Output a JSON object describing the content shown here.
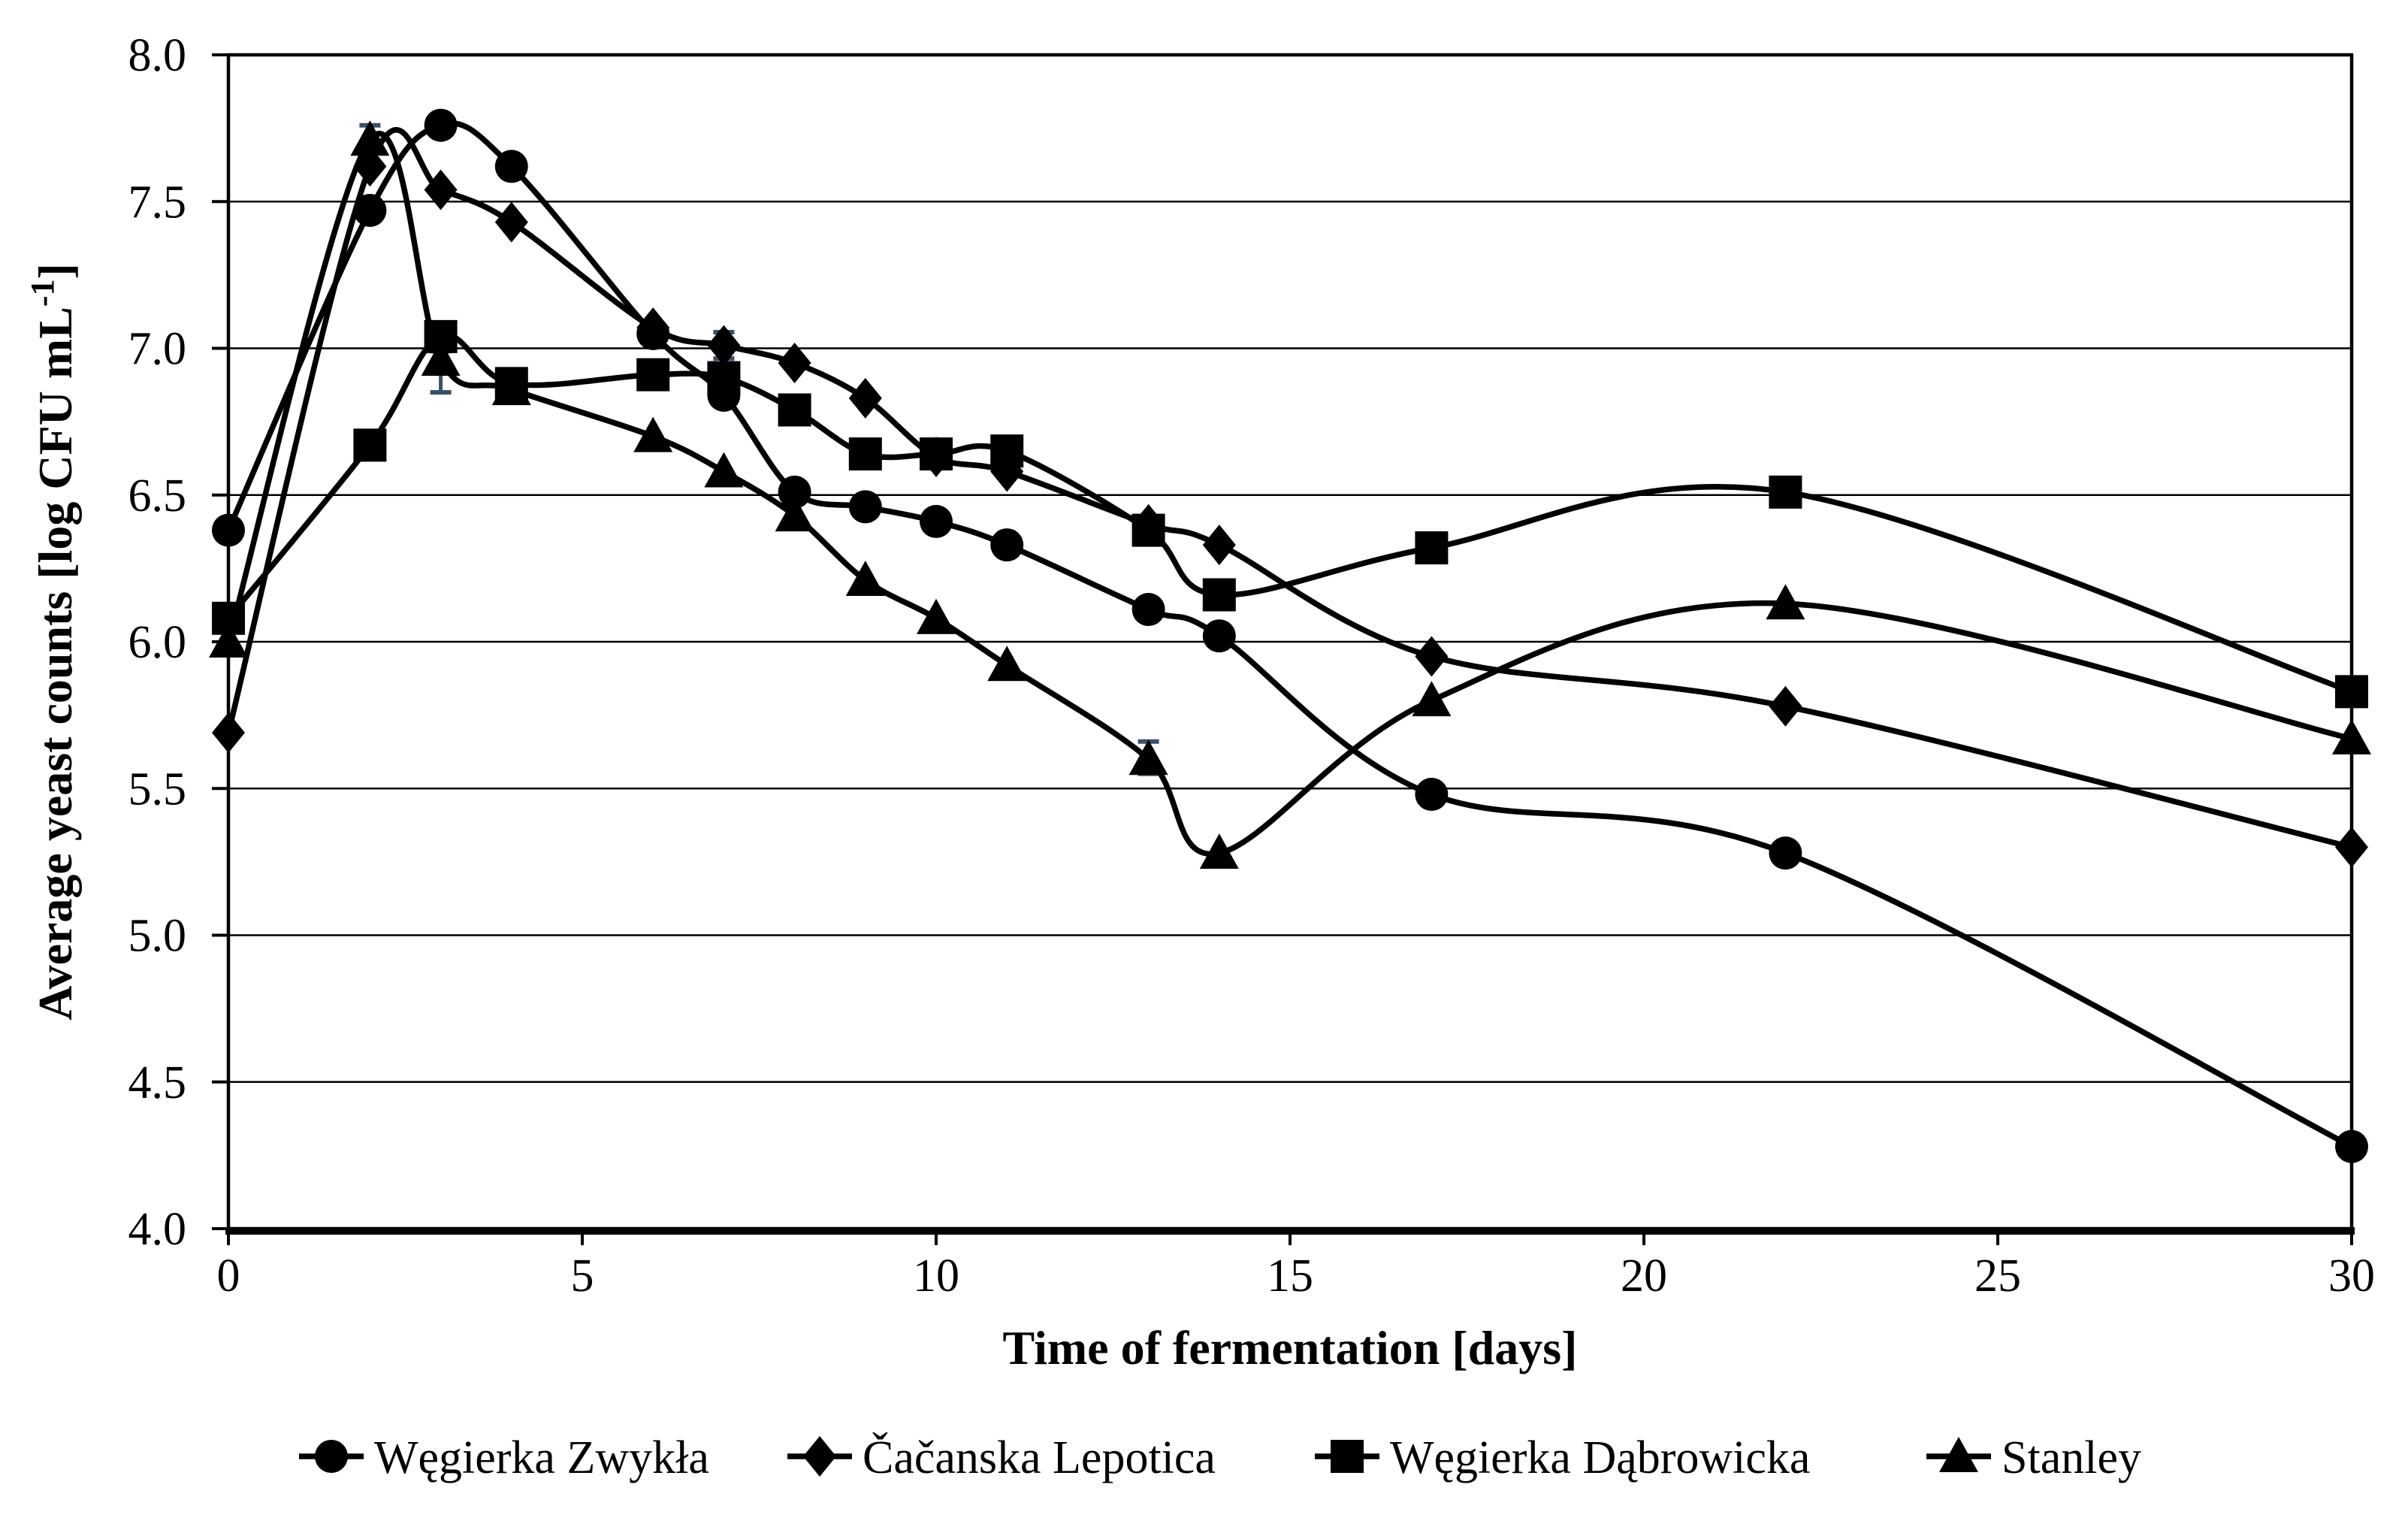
{
  "chart_data": {
    "type": "line",
    "title": "",
    "xlabel": "Time of fermentation [days]",
    "ylabel": "Average yeast counts [log CFU mL⁻¹]",
    "ylabel_parts": {
      "main": "Average yeast counts [log CFU mL",
      "sup": "-1",
      "end": "]"
    },
    "xlim": [
      0,
      30
    ],
    "ylim": [
      4.0,
      8.0
    ],
    "xticks": [
      0,
      5,
      10,
      15,
      20,
      25,
      30
    ],
    "yticks": [
      8.0,
      7.5,
      7.0,
      6.5,
      6.0,
      5.5,
      5.0,
      4.5,
      4.0
    ],
    "grid": "horizontal-only",
    "legend_position": "bottom",
    "line_color": "#000000",
    "error_bar_color": "#3a5068",
    "x": [
      0,
      2,
      3,
      4,
      6,
      7,
      8,
      9,
      10,
      11,
      13,
      14,
      17,
      22,
      30
    ],
    "series": [
      {
        "name": "Węgierka Zwykła",
        "marker": "circle",
        "values": [
          6.38,
          7.47,
          7.76,
          7.62,
          7.05,
          6.84,
          6.51,
          6.46,
          6.41,
          6.33,
          6.11,
          6.02,
          5.48,
          5.28,
          4.28
        ]
      },
      {
        "name": "Čačanska Lepotica",
        "marker": "diamond",
        "values": [
          5.69,
          7.62,
          7.54,
          7.43,
          7.07,
          7.01,
          6.95,
          6.83,
          6.63,
          6.58,
          6.4,
          6.33,
          5.95,
          5.78,
          5.3
        ]
      },
      {
        "name": "Węgierka Dąbrowicka",
        "marker": "square",
        "values": [
          6.08,
          6.67,
          7.04,
          6.88,
          6.91,
          6.9,
          6.79,
          6.64,
          6.64,
          6.65,
          6.38,
          6.16,
          6.32,
          6.51,
          5.83
        ]
      },
      {
        "name": "Stanley",
        "marker": "triangle",
        "values": [
          6.0,
          7.71,
          6.96,
          6.86,
          6.7,
          6.58,
          6.43,
          6.21,
          6.08,
          5.92,
          5.6,
          5.28,
          5.8,
          6.13,
          5.67
        ]
      }
    ],
    "error_bars": [
      {
        "series": "Stanley",
        "x": 2,
        "low": 7.64,
        "high": 7.76
      },
      {
        "series": "Stanley",
        "x": 3,
        "low": 6.85,
        "high": 6.99
      },
      {
        "series": "Čačanska Lepotica",
        "x": 7,
        "low": 6.965,
        "high": 7.055
      },
      {
        "series": "Stanley",
        "x": 13,
        "low": 5.55,
        "high": 5.66
      }
    ]
  },
  "x_axis": {
    "title": "Time of fermentation [days]",
    "ticks": [
      "0",
      "5",
      "10",
      "15",
      "20",
      "25",
      "30"
    ]
  },
  "y_axis": {
    "title": "Average yeast counts [log CFU mL⁻¹]",
    "ticks": [
      "8.0",
      "7.5",
      "7.0",
      "6.5",
      "6.0",
      "5.5",
      "5.0",
      "4.5",
      "4.0"
    ]
  },
  "legend": {
    "items": [
      {
        "label": "Węgierka Zwykła",
        "marker": "circle"
      },
      {
        "label": "Čačanska Lepotica",
        "marker": "diamond"
      },
      {
        "label": "Węgierka Dąbrowicka",
        "marker": "square"
      },
      {
        "label": "Stanley",
        "marker": "triangle"
      }
    ]
  }
}
